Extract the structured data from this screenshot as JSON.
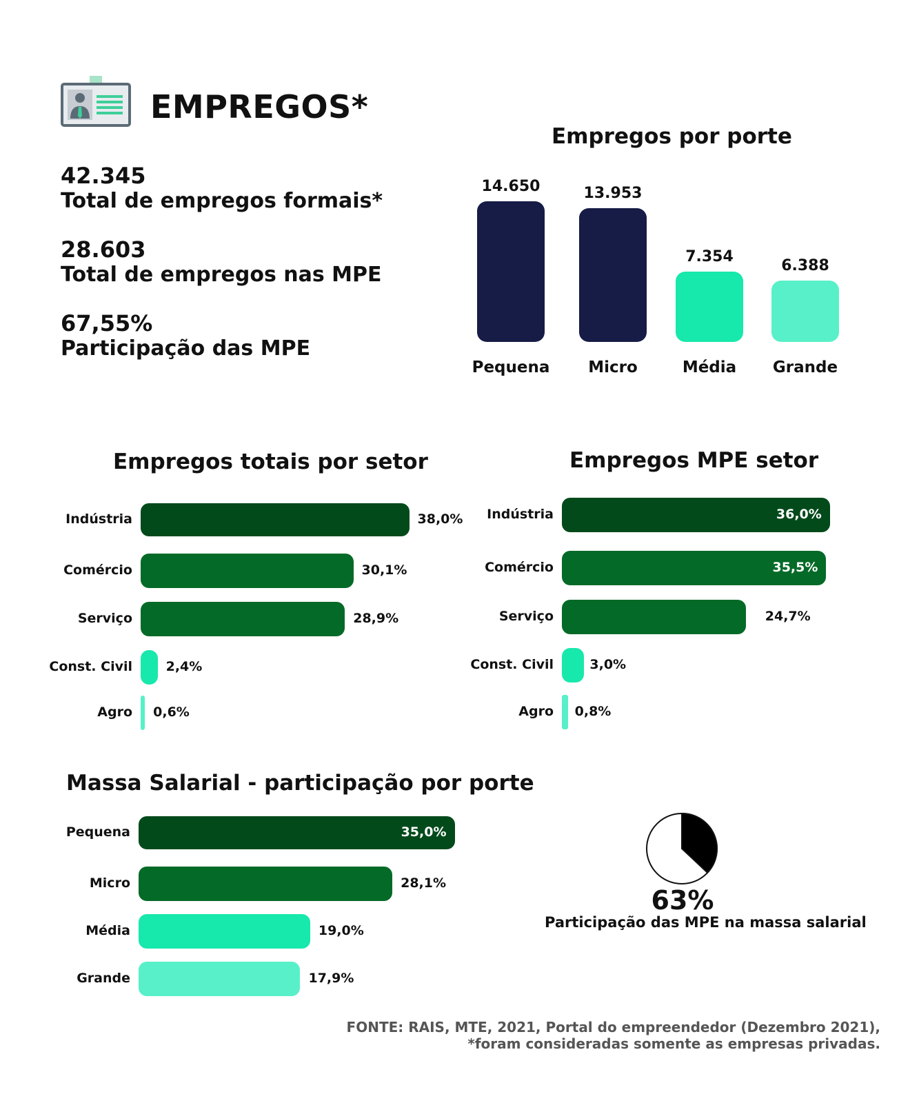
{
  "header": {
    "title": "EMPREGOS*",
    "icon": "employee-badge-icon"
  },
  "stats": [
    {
      "value": "42.345",
      "label": "Total de empregos formais*"
    },
    {
      "value": "28.603",
      "label": "Total de empregos nas MPE"
    },
    {
      "value": "67,55%",
      "label": "Participação das MPE"
    }
  ],
  "colors": {
    "navy": "#161c46",
    "darkgreen": "#034a1b",
    "green": "#046a27",
    "mint": "#17e8ab",
    "lightmint": "#58f0c8"
  },
  "chart_data": [
    {
      "id": "porte",
      "type": "bar",
      "title": "Empregos por porte",
      "categories": [
        "Pequena",
        "Micro",
        "Média",
        "Grande"
      ],
      "values": [
        14650,
        13953,
        7354,
        6388
      ],
      "value_labels": [
        "14.650",
        "13.953",
        "7.354",
        "6.388"
      ],
      "colors": [
        "#161c46",
        "#161c46",
        "#17e8ab",
        "#58f0c8"
      ],
      "orientation": "vertical"
    },
    {
      "id": "setor_total",
      "type": "bar",
      "title": "Empregos totais por setor",
      "orientation": "horizontal",
      "categories": [
        "Indústria",
        "Comércio",
        "Serviço",
        "Const. Civil",
        "Agro"
      ],
      "values": [
        38.0,
        30.1,
        28.9,
        2.4,
        0.6
      ],
      "value_labels": [
        "38,0%",
        "30,1%",
        "28,9%",
        "2,4%",
        "0,6%"
      ],
      "colors": [
        "#034a1b",
        "#046a27",
        "#046a27",
        "#17e8ab",
        "#58f0c8"
      ]
    },
    {
      "id": "setor_mpe",
      "type": "bar",
      "title": "Empregos MPE setor",
      "orientation": "horizontal",
      "categories": [
        "Indústria",
        "Comércio",
        "Serviço",
        "Const. Civil",
        "Agro"
      ],
      "values": [
        36.0,
        35.5,
        24.7,
        3.0,
        0.8
      ],
      "value_labels": [
        "36,0%",
        "35,5%",
        "24,7%",
        "3,0%",
        "0,8%"
      ],
      "colors": [
        "#034a1b",
        "#046a27",
        "#046a27",
        "#17e8ab",
        "#58f0c8"
      ]
    },
    {
      "id": "massa",
      "type": "bar",
      "title": "Massa Salarial - participação por porte",
      "orientation": "horizontal",
      "categories": [
        "Pequena",
        "Micro",
        "Média",
        "Grande"
      ],
      "values": [
        35.0,
        28.1,
        19.0,
        17.9
      ],
      "value_labels": [
        "35,0%",
        "28,1%",
        "19,0%",
        "17,9%"
      ],
      "colors": [
        "#034a1b",
        "#046a27",
        "#17e8ab",
        "#58f0c8"
      ]
    },
    {
      "id": "massa_mpe",
      "type": "pie",
      "values": [
        63,
        37
      ],
      "value_label": "63%",
      "label": "Participação das MPE na massa salarial"
    }
  ],
  "source": {
    "line1": "FONTE: RAIS, MTE, 2021, Portal do empreendedor (Dezembro 2021),",
    "line2": "*foram consideradas somente as empresas privadas."
  }
}
